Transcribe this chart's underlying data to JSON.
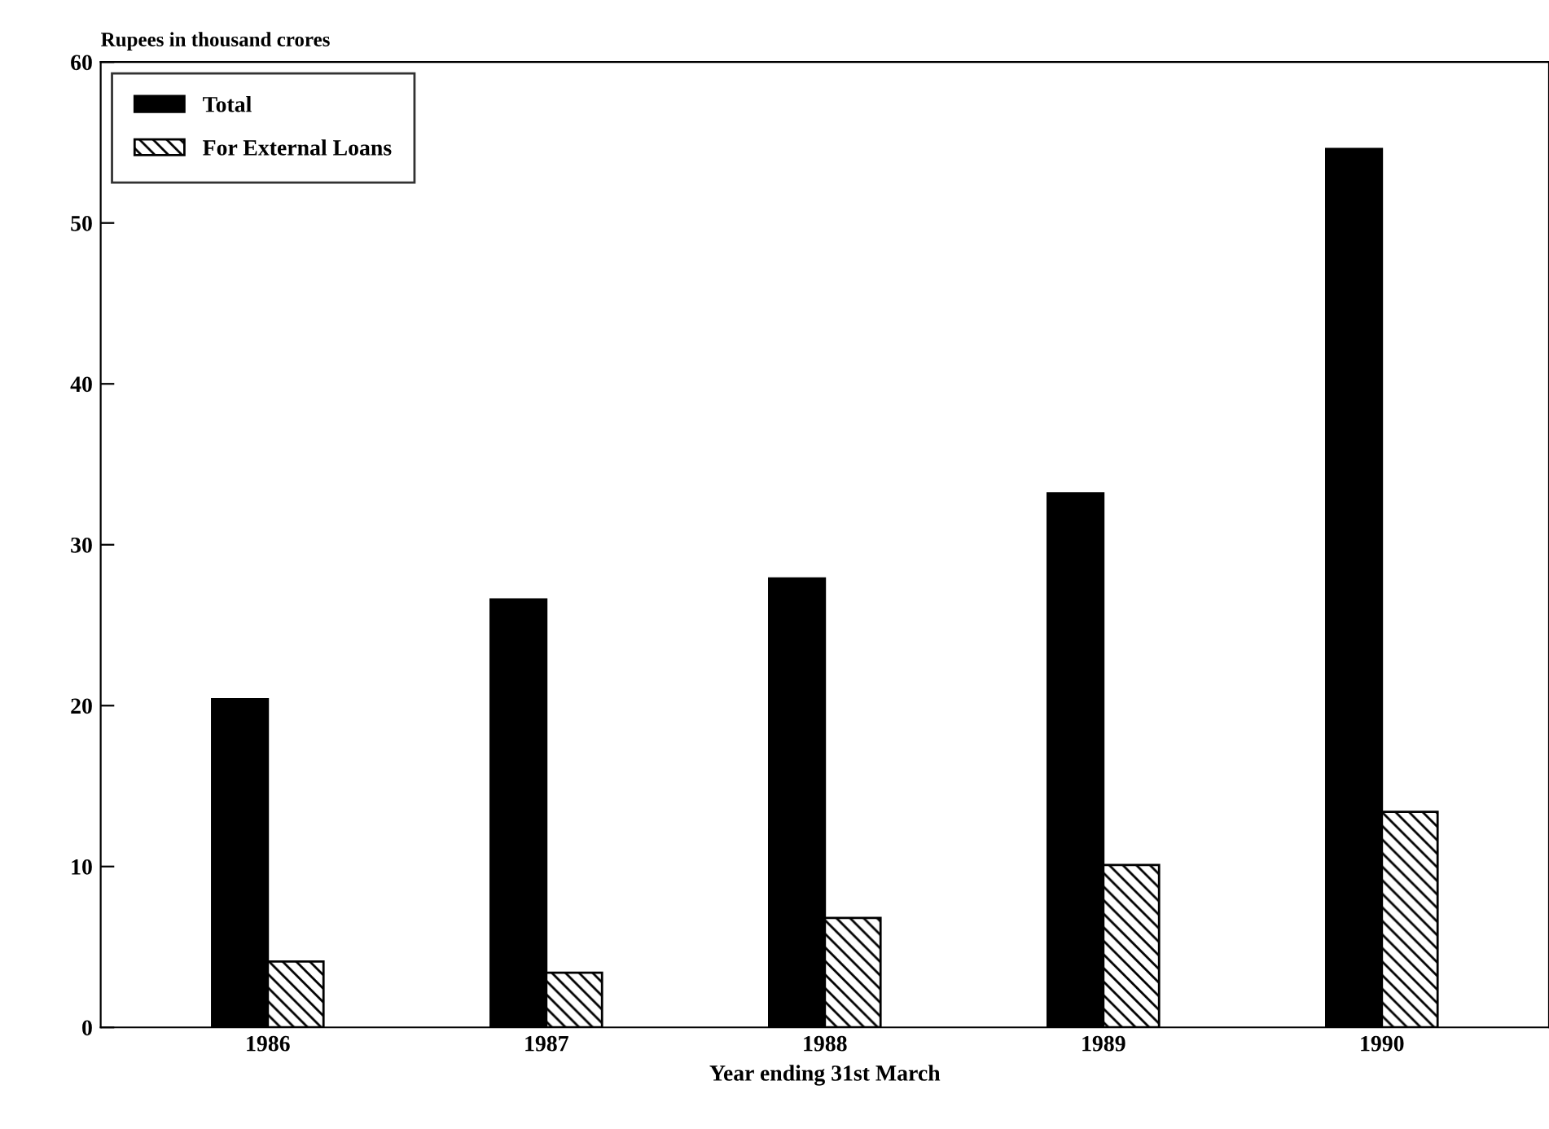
{
  "chart_data": {
    "type": "bar",
    "ylabel": "Rupees in thousand crores",
    "xlabel": "Year ending 31st March",
    "categories": [
      "1986",
      "1987",
      "1988",
      "1989",
      "1990"
    ],
    "series": [
      {
        "name": "Total",
        "color": "#000000",
        "values": [
          20.4,
          26.6,
          27.9,
          33.2,
          54.6
        ]
      },
      {
        "name": "For External Loans",
        "color": "#000000",
        "values": [
          4.1,
          3.4,
          6.8,
          10.1,
          13.4
        ]
      }
    ],
    "ylim": [
      0,
      60
    ],
    "yticks": [
      0,
      10,
      20,
      30,
      40,
      50,
      60
    ],
    "grid": false,
    "legend": "top left"
  }
}
